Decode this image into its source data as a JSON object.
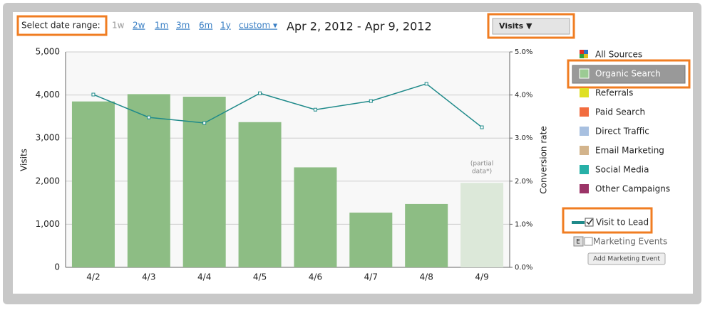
{
  "controls": {
    "date_range_label": "Select date range:",
    "ranges": [
      "1w",
      "2w",
      "1m",
      "3m",
      "6m",
      "1y",
      "custom ▾"
    ],
    "date_text": "Apr 2, 2012 - Apr 9, 2012",
    "metric_dropdown": "Visits ▼",
    "partial_note": [
      "(partial",
      "data*)"
    ],
    "visit_to_lead": "Visit to Lead",
    "marketing_events": "Marketing Events",
    "e_button": "E",
    "add_event_button": "Add Marketing Event"
  },
  "sources": {
    "items": [
      {
        "name": "All Sources",
        "color": "multi"
      },
      {
        "name": "Organic Search",
        "color": "#9ccb94"
      },
      {
        "name": "Referrals",
        "color": "#dfe024"
      },
      {
        "name": "Paid Search",
        "color": "#f26c3f"
      },
      {
        "name": "Direct Traffic",
        "color": "#a8c0e0"
      },
      {
        "name": "Email Marketing",
        "color": "#d3b48c"
      },
      {
        "name": "Social Media",
        "color": "#27b0a7"
      },
      {
        "name": "Other Campaigns",
        "color": "#9b3467"
      }
    ]
  },
  "chart_data": {
    "type": "bar",
    "categories": [
      "4/2",
      "4/3",
      "4/4",
      "4/5",
      "4/6",
      "4/7",
      "4/8",
      "4/9"
    ],
    "y_label": "Visits",
    "y2_label": "Conversion rate",
    "series": [
      {
        "name": "Visits",
        "color": "#8dbd84",
        "colors": [
          "#8dbd84",
          "#8dbd84",
          "#8dbd84",
          "#8dbd84",
          "#8dbd84",
          "#8dbd84",
          "#8dbd84",
          "#dce8d9"
        ],
        "values": [
          3850,
          4020,
          3960,
          3370,
          2320,
          1270,
          1470,
          1960
        ]
      },
      {
        "name": "Conversion rate",
        "type": "line",
        "axis": "y2",
        "color": "#1f8a8a",
        "values": [
          4.01,
          3.48,
          3.35,
          4.04,
          3.66,
          3.86,
          4.26,
          3.25
        ]
      }
    ],
    "ylim": [
      0,
      5000
    ],
    "yticks": [
      0,
      {
        "value": 1000,
        "label": "1,000"
      },
      {
        "value": 2000,
        "label": "2,000"
      },
      {
        "value": 3000,
        "label": "3,000"
      },
      {
        "value": 4000,
        "label": "4,000"
      },
      {
        "value": 5000,
        "label": "5,000"
      }
    ],
    "y2lim": [
      0,
      5
    ],
    "y2ticks": [
      {
        "value": 0,
        "label": "0.0%"
      },
      {
        "value": 1,
        "label": "1.0%"
      },
      {
        "value": 2,
        "label": "2.0%"
      },
      {
        "value": 3,
        "label": "3.0%"
      },
      {
        "value": 4,
        "label": "4.0%"
      },
      {
        "value": 5,
        "label": "5.0%"
      }
    ],
    "grid": true
  }
}
